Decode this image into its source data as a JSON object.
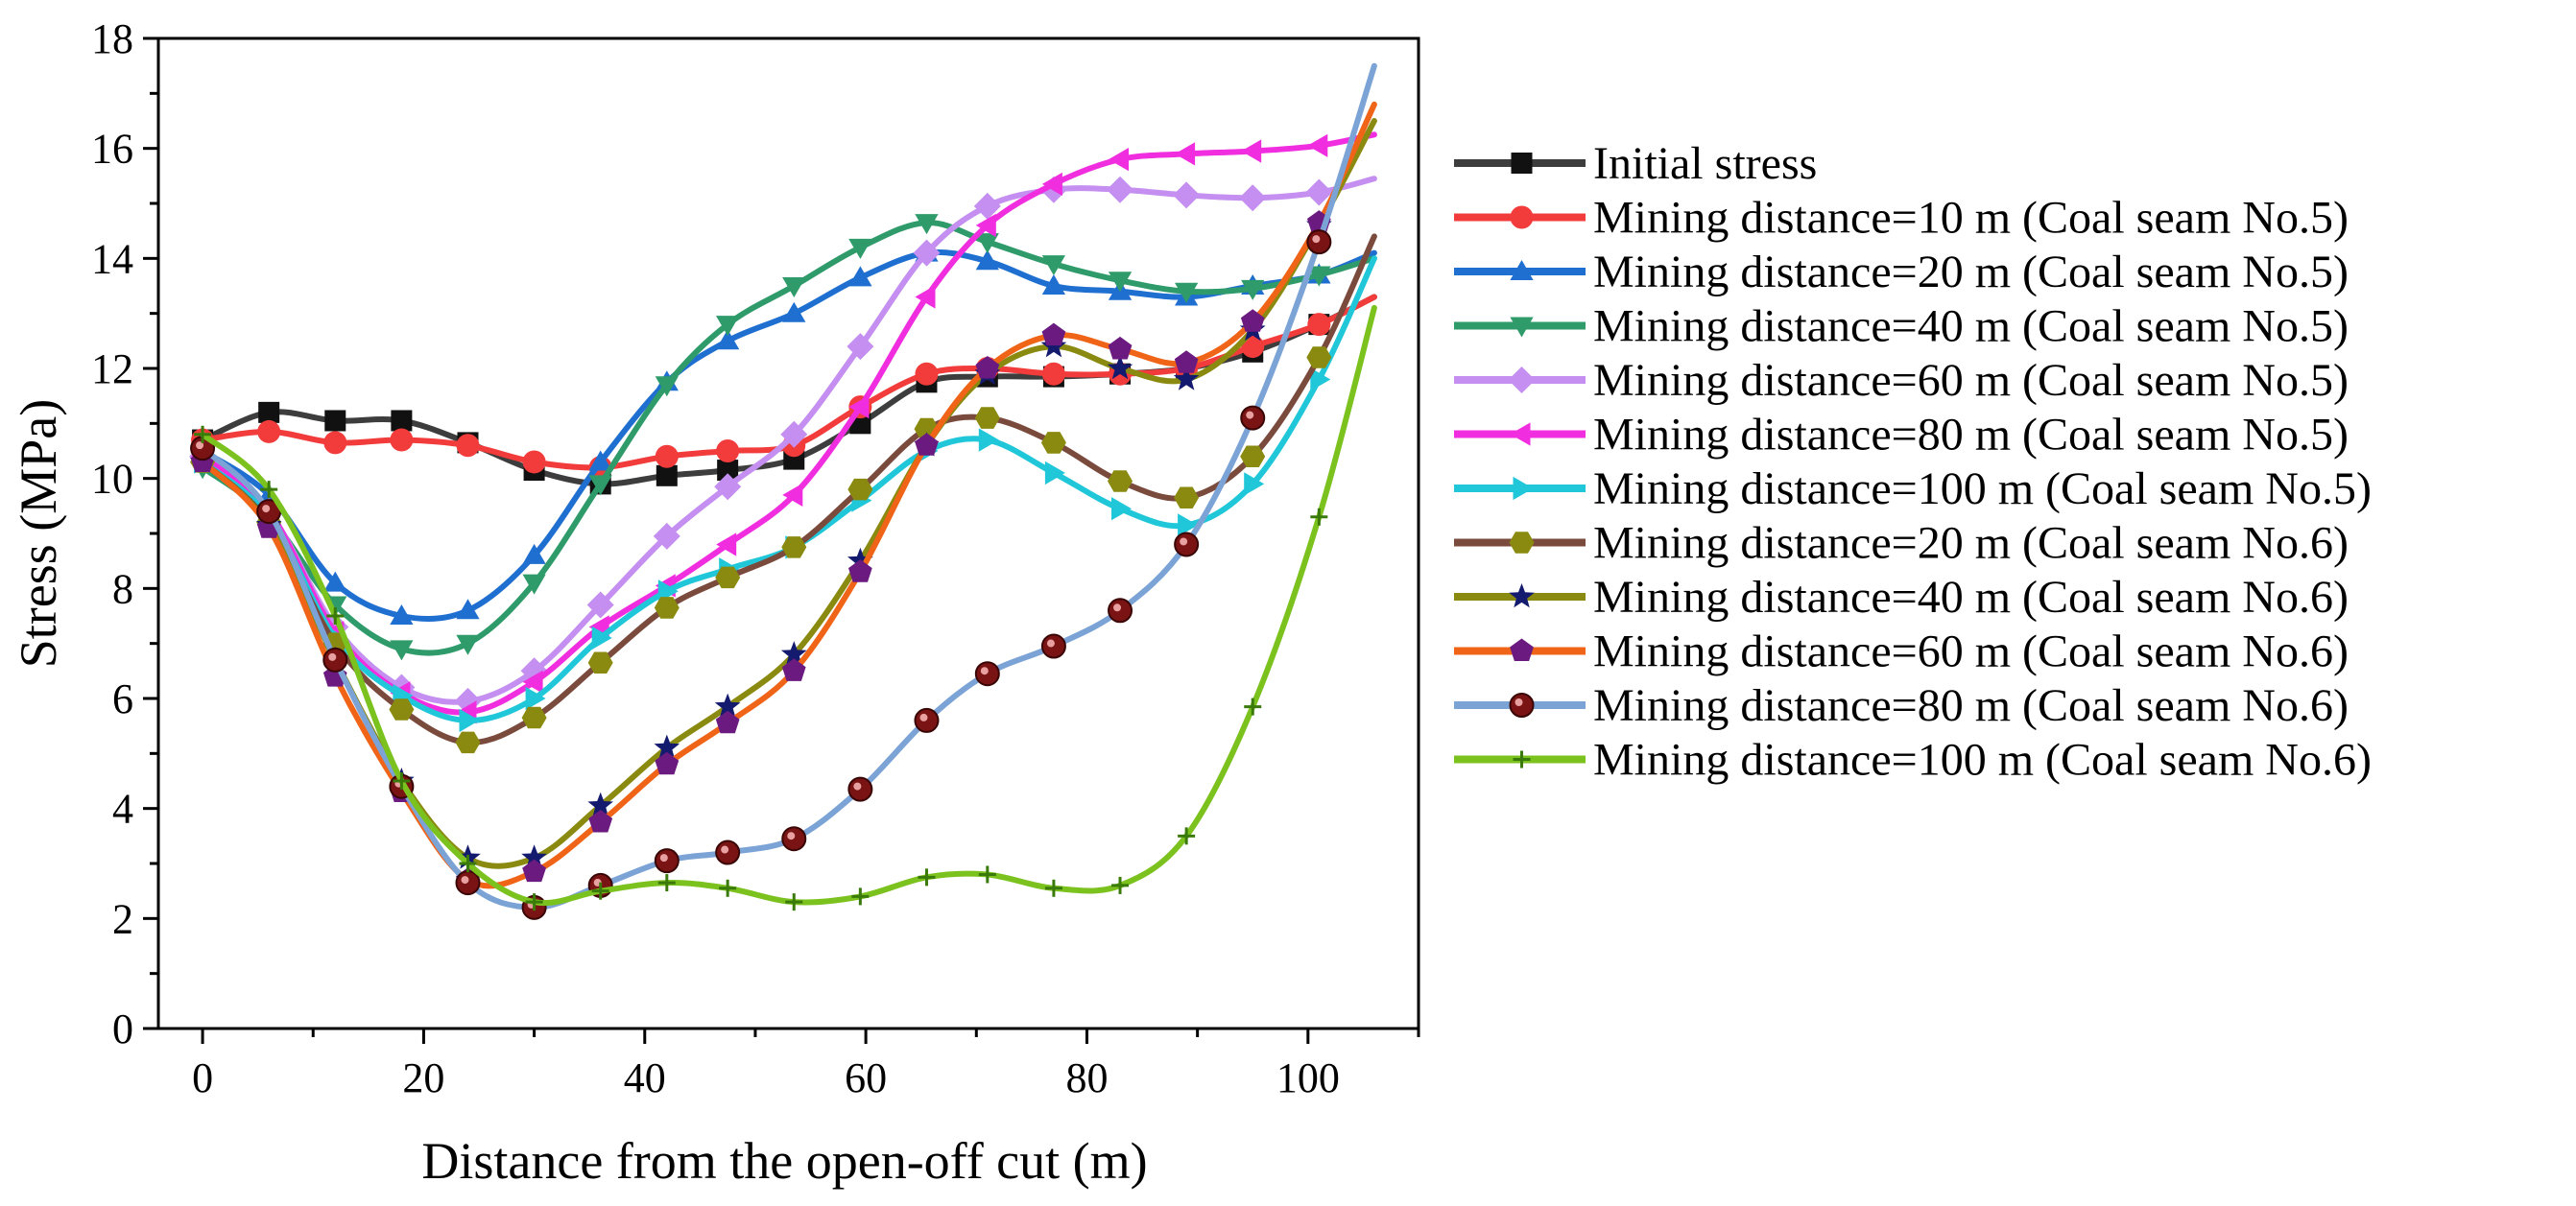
{
  "chart_data": {
    "type": "line",
    "title": "",
    "xlabel": "Distance from the open-off cut (m)",
    "ylabel": "Stress (MPa)",
    "xlim": [
      -4,
      110
    ],
    "ylim": [
      0,
      18
    ],
    "xticks": [
      0,
      20,
      40,
      60,
      80,
      100
    ],
    "yticks": [
      0,
      2,
      4,
      6,
      8,
      10,
      12,
      14,
      16,
      18
    ],
    "grid": false,
    "legend_position": "right",
    "series": [
      {
        "name": "Initial stress",
        "color": "#3d3d3d",
        "marker": "square",
        "x": [
          0,
          6,
          12,
          18,
          24,
          30,
          36,
          42,
          47.5,
          53.5,
          59.5,
          65.5,
          71,
          77,
          83,
          89,
          95,
          101,
          106
        ],
        "y": [
          10.7,
          11.2,
          11.05,
          11.05,
          10.65,
          10.15,
          9.9,
          10.05,
          10.15,
          10.35,
          11.0,
          11.75,
          11.85,
          11.85,
          11.9,
          12.0,
          12.3,
          12.8,
          13.3
        ]
      },
      {
        "name": "Mining distance=10 m (Coal seam No.5)",
        "color": "#f23c3c",
        "marker": "circle",
        "x": [
          0,
          6,
          12,
          18,
          24,
          30,
          36,
          42,
          47.5,
          53.5,
          59.5,
          65.5,
          71,
          77,
          83,
          89,
          95,
          101,
          106
        ],
        "y": [
          10.7,
          10.85,
          10.65,
          10.7,
          10.6,
          10.3,
          10.2,
          10.4,
          10.5,
          10.6,
          11.3,
          11.9,
          12.0,
          11.9,
          11.9,
          12.0,
          12.4,
          12.8,
          13.3
        ]
      },
      {
        "name": "Mining distance=20 m (Coal seam No.5)",
        "color": "#1f6fd1",
        "marker": "triangle-up",
        "x": [
          0,
          6,
          12,
          18,
          24,
          30,
          36,
          42,
          47.5,
          53.5,
          59.5,
          65.5,
          71,
          77,
          83,
          89,
          95,
          101,
          106
        ],
        "y": [
          10.5,
          9.7,
          8.1,
          7.5,
          7.6,
          8.6,
          10.3,
          11.75,
          12.5,
          13.0,
          13.65,
          14.1,
          13.95,
          13.5,
          13.4,
          13.3,
          13.5,
          13.7,
          14.1
        ]
      },
      {
        "name": "Mining distance=40 m (Coal seam No.5)",
        "color": "#2f9b6a",
        "marker": "triangle-down",
        "x": [
          0,
          6,
          12,
          18,
          24,
          30,
          36,
          42,
          47.5,
          53.5,
          59.5,
          65.5,
          71,
          77,
          83,
          89,
          95,
          101,
          106
        ],
        "y": [
          10.2,
          9.3,
          7.7,
          6.9,
          7.0,
          8.1,
          9.9,
          11.7,
          12.8,
          13.5,
          14.2,
          14.65,
          14.3,
          13.9,
          13.6,
          13.4,
          13.45,
          13.7,
          14.0
        ]
      },
      {
        "name": "Mining distance=60 m (Coal seam No.5)",
        "color": "#c48ff0",
        "marker": "diamond",
        "x": [
          0,
          6,
          12,
          18,
          24,
          30,
          36,
          42,
          47.5,
          53.5,
          59.5,
          65.5,
          71,
          77,
          83,
          89,
          95,
          101,
          106
        ],
        "y": [
          10.4,
          9.4,
          7.3,
          6.2,
          5.95,
          6.5,
          7.7,
          8.95,
          9.85,
          10.8,
          12.4,
          14.1,
          14.95,
          15.25,
          15.25,
          15.15,
          15.1,
          15.2,
          15.45
        ]
      },
      {
        "name": "Mining distance=80 m (Coal seam No.5)",
        "color": "#f02ee0",
        "marker": "triangle-left",
        "x": [
          0,
          6,
          12,
          18,
          24,
          30,
          36,
          42,
          47.5,
          53.5,
          59.5,
          65.5,
          71,
          77,
          83,
          89,
          95,
          101,
          106
        ],
        "y": [
          10.4,
          9.4,
          7.2,
          6.1,
          5.75,
          6.3,
          7.3,
          8.05,
          8.8,
          9.7,
          11.3,
          13.3,
          14.6,
          15.35,
          15.8,
          15.9,
          15.95,
          16.05,
          16.25
        ]
      },
      {
        "name": "Mining distance=100 m (Coal seam No.5)",
        "color": "#1fc7d9",
        "marker": "triangle-right",
        "x": [
          0,
          6,
          12,
          18,
          24,
          30,
          36,
          42,
          47.5,
          53.5,
          59.5,
          65.5,
          71,
          77,
          83,
          89,
          95,
          101,
          106
        ],
        "y": [
          10.3,
          9.3,
          7.1,
          6.05,
          5.6,
          6.0,
          7.1,
          7.95,
          8.35,
          8.75,
          9.6,
          10.5,
          10.7,
          10.1,
          9.45,
          9.15,
          9.9,
          11.8,
          14.0
        ]
      },
      {
        "name": "Mining distance=20 m (Coal seam No.6)",
        "color": "#7a4a3c",
        "marker": "hexagon",
        "x": [
          0,
          6,
          12,
          18,
          24,
          30,
          36,
          42,
          47.5,
          53.5,
          59.5,
          65.5,
          71,
          77,
          83,
          89,
          95,
          101,
          106
        ],
        "y": [
          10.3,
          9.2,
          7.0,
          5.8,
          5.2,
          5.65,
          6.65,
          7.65,
          8.2,
          8.75,
          9.8,
          10.9,
          11.1,
          10.65,
          9.95,
          9.65,
          10.4,
          12.2,
          14.4
        ]
      },
      {
        "name": "Mining distance=40 m (Coal seam No.6)",
        "color": "#8a8a10",
        "marker": "star",
        "x": [
          0,
          6,
          12,
          18,
          24,
          30,
          36,
          42,
          47.5,
          53.5,
          59.5,
          65.5,
          71,
          77,
          83,
          89,
          95,
          101,
          106
        ],
        "y": [
          10.3,
          9.15,
          6.7,
          4.5,
          3.1,
          3.1,
          4.05,
          5.1,
          5.85,
          6.8,
          8.5,
          10.6,
          11.9,
          12.4,
          12.0,
          11.8,
          12.7,
          14.6,
          16.5
        ]
      },
      {
        "name": "Mining distance=60 m (Coal seam No.6)",
        "color": "#f06418",
        "marker": "pentagon",
        "x": [
          0,
          6,
          12,
          18,
          24,
          30,
          36,
          42,
          47.5,
          53.5,
          59.5,
          65.5,
          71,
          77,
          83,
          89,
          95,
          101,
          106
        ],
        "y": [
          10.3,
          9.1,
          6.4,
          4.3,
          2.7,
          2.85,
          3.75,
          4.8,
          5.55,
          6.5,
          8.3,
          10.6,
          12.0,
          12.6,
          12.35,
          12.1,
          12.85,
          14.65,
          16.8
        ]
      },
      {
        "name": "Mining distance=80 m (Coal seam No.6)",
        "color": "#7ba3d6",
        "marker": "circle-dark",
        "x": [
          0,
          6,
          12,
          18,
          24,
          30,
          36,
          42,
          47.5,
          53.5,
          59.5,
          65.5,
          71,
          77,
          83,
          89,
          95,
          101,
          106
        ],
        "y": [
          10.55,
          9.4,
          6.7,
          4.4,
          2.65,
          2.2,
          2.6,
          3.05,
          3.2,
          3.45,
          4.35,
          5.6,
          6.45,
          6.95,
          7.6,
          8.8,
          11.1,
          14.3,
          17.5
        ]
      },
      {
        "name": "Mining distance=100 m (Coal seam No.6)",
        "color": "#7cc21f",
        "marker": "plus",
        "x": [
          0,
          6,
          12,
          18,
          24,
          30,
          36,
          42,
          47.5,
          53.5,
          59.5,
          65.5,
          71,
          77,
          83,
          89,
          95,
          101,
          106
        ],
        "y": [
          10.8,
          9.8,
          7.5,
          4.5,
          3.0,
          2.3,
          2.5,
          2.65,
          2.55,
          2.3,
          2.4,
          2.75,
          2.8,
          2.55,
          2.6,
          3.5,
          5.85,
          9.3,
          13.1
        ]
      }
    ]
  }
}
